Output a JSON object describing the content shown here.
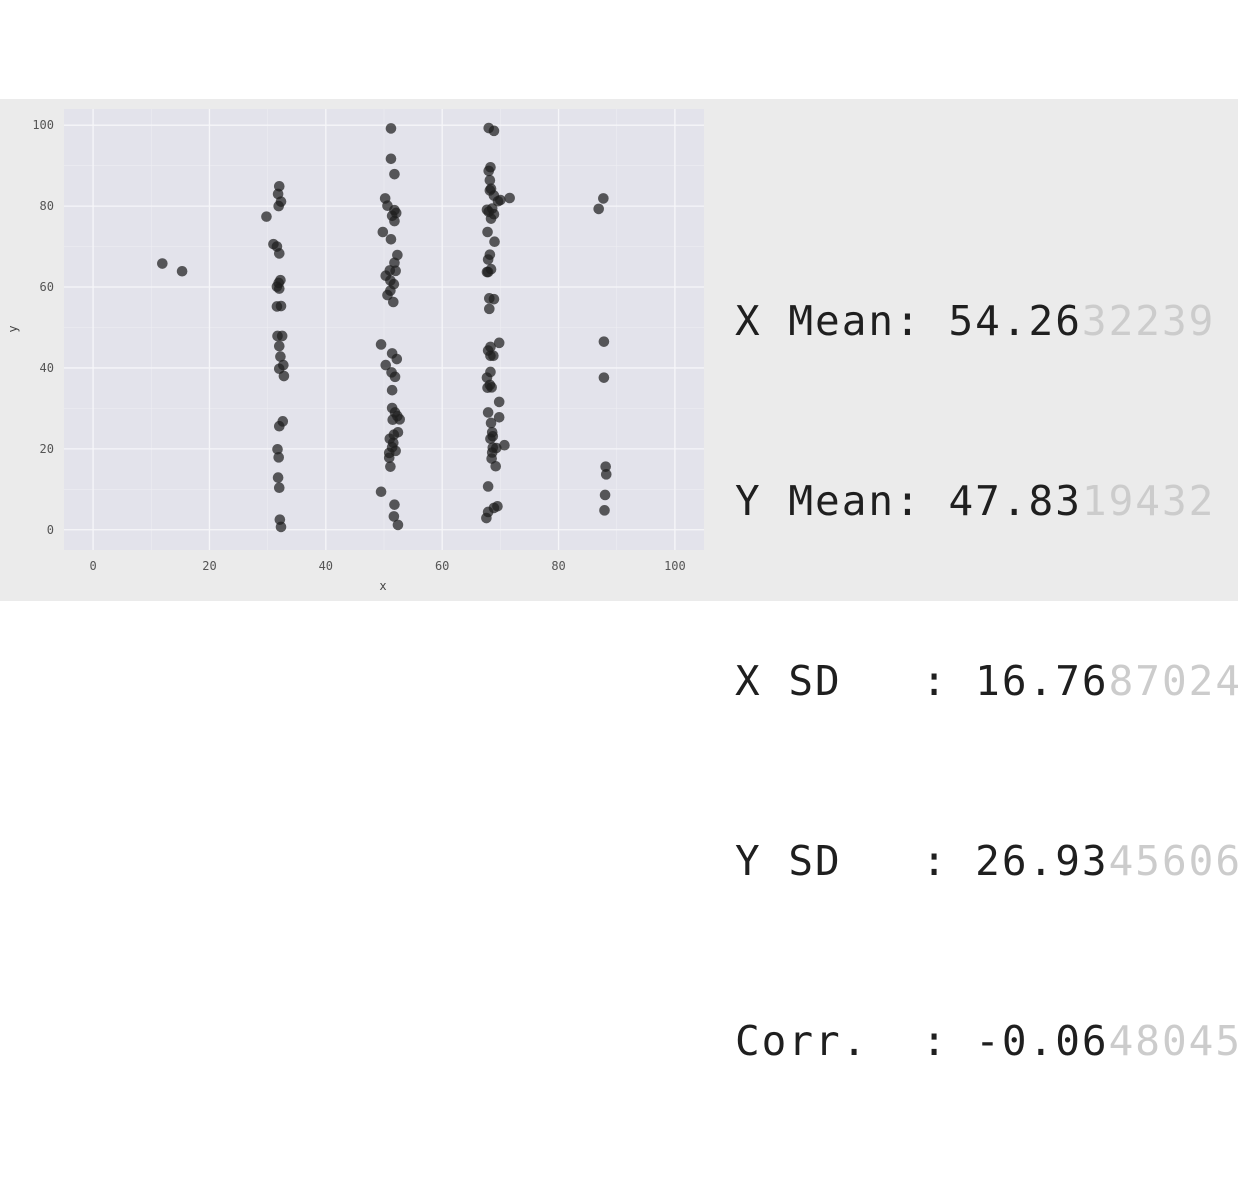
{
  "chart_data": {
    "type": "scatter",
    "xlabel": "x",
    "ylabel": "y",
    "xlim": [
      -5,
      105
    ],
    "ylim": [
      -5,
      104
    ],
    "grid": true,
    "x_ticks": [
      0,
      20,
      40,
      60,
      80,
      100
    ],
    "y_ticks": [
      0,
      20,
      40,
      60,
      80,
      100
    ],
    "marker_color": "#1e1e1e",
    "plot_background": "#e3e3eb",
    "points": [
      [
        11.9,
        65.8
      ],
      [
        15.3,
        63.9
      ],
      [
        29.8,
        77.4
      ],
      [
        31.0,
        70.6
      ],
      [
        31.6,
        70.0
      ],
      [
        31.6,
        60.1
      ],
      [
        31.6,
        55.2
      ],
      [
        31.7,
        47.9
      ],
      [
        31.7,
        19.9
      ],
      [
        31.8,
        12.9
      ],
      [
        31.8,
        83.0
      ],
      [
        31.9,
        80.0
      ],
      [
        31.9,
        61.0
      ],
      [
        31.9,
        17.9
      ],
      [
        32.0,
        84.9
      ],
      [
        32.0,
        68.3
      ],
      [
        32.0,
        59.6
      ],
      [
        32.0,
        45.4
      ],
      [
        32.0,
        39.8
      ],
      [
        32.0,
        25.6
      ],
      [
        32.0,
        10.4
      ],
      [
        32.1,
        2.5
      ],
      [
        32.2,
        61.7
      ],
      [
        32.2,
        42.8
      ],
      [
        32.3,
        81.1
      ],
      [
        32.3,
        55.3
      ],
      [
        32.3,
        0.7
      ],
      [
        32.5,
        47.9
      ],
      [
        32.6,
        26.8
      ],
      [
        32.7,
        40.7
      ],
      [
        32.8,
        38.0
      ],
      [
        49.5,
        45.8
      ],
      [
        49.5,
        9.4
      ],
      [
        49.8,
        73.6
      ],
      [
        50.2,
        81.9
      ],
      [
        50.3,
        62.8
      ],
      [
        50.3,
        40.7
      ],
      [
        50.6,
        80.1
      ],
      [
        50.6,
        58.0
      ],
      [
        50.9,
        19.0
      ],
      [
        50.9,
        17.8
      ],
      [
        51.0,
        64.1
      ],
      [
        51.0,
        22.5
      ],
      [
        51.1,
        61.6
      ],
      [
        51.1,
        59.1
      ],
      [
        51.1,
        15.6
      ],
      [
        51.2,
        99.2
      ],
      [
        51.2,
        91.7
      ],
      [
        51.2,
        71.8
      ],
      [
        51.3,
        38.9
      ],
      [
        51.4,
        77.6
      ],
      [
        51.4,
        43.6
      ],
      [
        51.4,
        34.5
      ],
      [
        51.4,
        30.1
      ],
      [
        51.4,
        20.4
      ],
      [
        51.5,
        27.2
      ],
      [
        51.6,
        56.3
      ],
      [
        51.6,
        21.5
      ],
      [
        51.7,
        60.7
      ],
      [
        51.7,
        23.5
      ],
      [
        51.7,
        3.3
      ],
      [
        51.8,
        87.9
      ],
      [
        51.8,
        79.0
      ],
      [
        51.8,
        76.3
      ],
      [
        51.8,
        66.0
      ],
      [
        51.8,
        6.2
      ],
      [
        51.9,
        37.8
      ],
      [
        51.9,
        29.0
      ],
      [
        52.0,
        64.0
      ],
      [
        52.0,
        19.5
      ],
      [
        52.1,
        78.3
      ],
      [
        52.2,
        42.2
      ],
      [
        52.3,
        67.9
      ],
      [
        52.3,
        28.1
      ],
      [
        52.4,
        1.2
      ],
      [
        52.4,
        24.1
      ],
      [
        52.7,
        27.3
      ],
      [
        67.6,
        2.9
      ],
      [
        67.7,
        79.1
      ],
      [
        67.7,
        63.7
      ],
      [
        67.7,
        37.6
      ],
      [
        67.8,
        73.6
      ],
      [
        67.8,
        35.1
      ],
      [
        67.9,
        66.8
      ],
      [
        67.9,
        63.7
      ],
      [
        67.9,
        44.3
      ],
      [
        67.9,
        29.0
      ],
      [
        67.9,
        10.7
      ],
      [
        67.9,
        4.4
      ],
      [
        68.0,
        99.3
      ],
      [
        68.0,
        88.7
      ],
      [
        68.0,
        78.6
      ],
      [
        68.1,
        57.2
      ],
      [
        68.1,
        54.6
      ],
      [
        68.2,
        86.4
      ],
      [
        68.2,
        83.9
      ],
      [
        68.2,
        68.0
      ],
      [
        68.2,
        35.8
      ],
      [
        68.3,
        89.6
      ],
      [
        68.3,
        45.2
      ],
      [
        68.3,
        43.0
      ],
      [
        68.3,
        39.0
      ],
      [
        68.3,
        22.5
      ],
      [
        68.4,
        84.3
      ],
      [
        68.4,
        76.9
      ],
      [
        68.4,
        64.4
      ],
      [
        68.4,
        26.4
      ],
      [
        68.5,
        35.2
      ],
      [
        68.5,
        17.6
      ],
      [
        68.6,
        19.1
      ],
      [
        68.6,
        24.1
      ],
      [
        68.6,
        79.4
      ],
      [
        68.7,
        23.1
      ],
      [
        68.7,
        20.3
      ],
      [
        68.8,
        43.0
      ],
      [
        68.9,
        98.6
      ],
      [
        68.9,
        82.6
      ],
      [
        68.9,
        78.0
      ],
      [
        68.9,
        57.0
      ],
      [
        68.9,
        5.4
      ],
      [
        69.0,
        71.2
      ],
      [
        69.2,
        15.7
      ],
      [
        69.3,
        20.2
      ],
      [
        69.5,
        5.8
      ],
      [
        69.6,
        81.2
      ],
      [
        69.8,
        46.2
      ],
      [
        69.8,
        31.6
      ],
      [
        69.8,
        27.8
      ],
      [
        70.0,
        81.5
      ],
      [
        70.7,
        20.9
      ],
      [
        71.6,
        82.0
      ],
      [
        86.9,
        79.3
      ],
      [
        87.7,
        81.9
      ],
      [
        87.8,
        46.5
      ],
      [
        87.8,
        37.6
      ],
      [
        87.9,
        4.8
      ],
      [
        88.0,
        8.6
      ],
      [
        88.1,
        15.6
      ],
      [
        88.2,
        13.7
      ]
    ]
  },
  "stats": [
    {
      "label": "X Mean: ",
      "value": "54.26",
      "faded": "32239"
    },
    {
      "label": "Y Mean: ",
      "value": "47.83",
      "faded": "19432"
    },
    {
      "label": "X SD   : ",
      "value": "16.76",
      "faded": "87024"
    },
    {
      "label": "Y SD   : ",
      "value": "26.93",
      "faded": "45606"
    },
    {
      "label": "Corr.  : ",
      "value": "-0.06",
      "faded": "48045"
    }
  ]
}
